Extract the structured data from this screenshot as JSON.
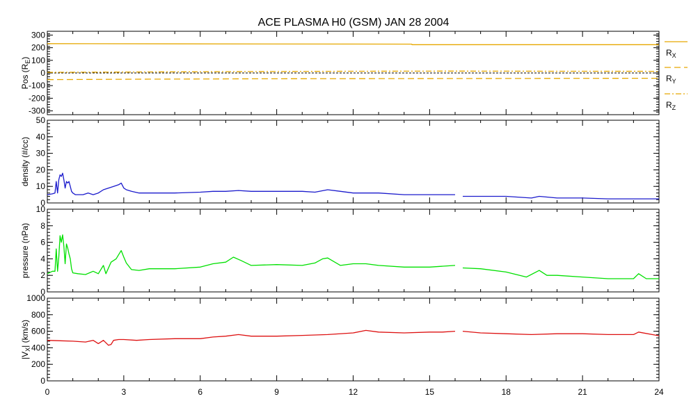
{
  "chart_data": {
    "type": "line",
    "title": "ACE PLASMA H0 (GSM)   JAN 28 2004",
    "x_axis": {
      "range": [
        0,
        24
      ],
      "ticks": [
        0,
        3,
        6,
        9,
        12,
        15,
        18,
        21,
        24
      ]
    },
    "panels": [
      {
        "id": "pos",
        "ylabel_main": "Pos (R",
        "ylabel_sub": "E",
        "ylabel_end": ")",
        "ylim": [
          -330,
          330
        ],
        "yticks": [
          -300,
          -200,
          -100,
          0,
          100,
          200,
          300
        ],
        "zero_line": true,
        "series": [
          {
            "name_main": "R",
            "name_sub": "X",
            "color": "#e6a800",
            "dash": "solid",
            "x": [
              0,
              14.3,
              14.31,
              24
            ],
            "y": [
              232,
              228,
              224,
              224
            ]
          },
          {
            "name_main": "R",
            "name_sub": "Y",
            "color": "#e6a800",
            "dash": "dashed",
            "x": [
              0,
              4,
              8,
              12,
              16,
              20,
              24
            ],
            "y": [
              -53,
              -49,
              -46,
              -45,
              -44,
              -43,
              -42
            ]
          },
          {
            "name_main": "R",
            "name_sub": "Z",
            "color": "#e6a800",
            "dash": "dashdot",
            "x": [
              0,
              4,
              8,
              12,
              16,
              20,
              24
            ],
            "y": [
              5,
              8,
              11,
              14,
              15,
              14,
              13
            ]
          }
        ]
      },
      {
        "id": "density",
        "ylabel": "density (#/cc)",
        "ylim": [
          0,
          50
        ],
        "yticks": [
          0,
          10,
          20,
          30,
          40,
          50
        ],
        "series": [
          {
            "name": "",
            "color": "#1a1acc",
            "x": [
              0,
              0.2,
              0.3,
              0.35,
              0.4,
              0.45,
              0.5,
              0.55,
              0.6,
              0.65,
              0.7,
              0.75,
              0.8,
              0.85,
              0.9,
              0.95,
              1.0,
              1.1,
              1.2,
              1.4,
              1.6,
              1.8,
              2.0,
              2.2,
              2.4,
              2.6,
              2.8,
              2.9,
              3.0,
              3.1,
              3.3,
              3.6,
              4,
              5,
              6,
              6.5,
              7,
              7.5,
              8,
              9,
              10,
              10.5,
              11,
              11.5,
              12,
              13,
              14,
              15,
              16,
              16.2,
              16.3,
              17,
              18,
              19,
              19.3,
              20,
              21,
              22,
              23,
              24
            ],
            "y": [
              5,
              5.5,
              6,
              13,
              6,
              14,
              17,
              16,
              18,
              14,
              9,
              13,
              12,
              13,
              10,
              7,
              6,
              5,
              5,
              5,
              6,
              5,
              6,
              8,
              9,
              10,
              11,
              12,
              9,
              8,
              7,
              6,
              6,
              6,
              6.5,
              7,
              7,
              7.5,
              7,
              7,
              7,
              6.5,
              8,
              7,
              6,
              6,
              5,
              5,
              5,
              null,
              4,
              4,
              4,
              3,
              4,
              3,
              3,
              2.5,
              2.5,
              2.5
            ]
          }
        ]
      },
      {
        "id": "pressure",
        "ylabel": "pressure (nPa)",
        "ylim": [
          0,
          10
        ],
        "yticks": [
          0,
          2,
          4,
          6,
          8,
          10
        ],
        "series": [
          {
            "name": "",
            "color": "#00e000",
            "x": [
              0,
              0.2,
              0.3,
              0.35,
              0.4,
              0.45,
              0.5,
              0.55,
              0.6,
              0.65,
              0.7,
              0.75,
              0.8,
              0.85,
              0.9,
              0.95,
              1.0,
              1.2,
              1.5,
              1.8,
              2.0,
              2.2,
              2.3,
              2.5,
              2.7,
              2.8,
              2.9,
              3.0,
              3.1,
              3.3,
              3.6,
              4,
              5,
              6,
              6.5,
              7,
              7.3,
              7.6,
              8,
              9,
              10,
              10.5,
              10.8,
              11,
              11.5,
              12,
              12.5,
              13,
              14,
              15,
              16,
              16.2,
              16.3,
              17,
              18,
              18.8,
              19.3,
              19.6,
              20,
              21,
              22,
              23,
              23.2,
              23.5,
              24
            ],
            "y": [
              2.2,
              2.5,
              2.5,
              5.2,
              2.5,
              4.2,
              6.8,
              6.0,
              6.9,
              5.5,
              3.4,
              5.8,
              5.3,
              4.6,
              4.0,
              2.8,
              2.3,
              2.2,
              2.1,
              2.5,
              2.2,
              3.2,
              2.2,
              3.6,
              4.0,
              4.5,
              5.0,
              4.2,
              3.5,
              2.7,
              2.6,
              2.8,
              2.8,
              3.0,
              3.4,
              3.6,
              4.2,
              3.8,
              3.2,
              3.3,
              3.2,
              3.5,
              4.0,
              4.1,
              3.2,
              3.4,
              3.4,
              3.2,
              3.0,
              3.0,
              3.2,
              null,
              2.9,
              2.8,
              2.4,
              1.8,
              2.6,
              2.0,
              2.0,
              1.8,
              1.6,
              1.6,
              2.2,
              1.6,
              1.6
            ]
          }
        ]
      },
      {
        "id": "vx",
        "ylabel_main": "|V",
        "ylabel_sub": "X",
        "ylabel_end": "| (km/s)",
        "ylim": [
          0,
          1000
        ],
        "yticks": [
          0,
          200,
          400,
          600,
          800,
          1000
        ],
        "series": [
          {
            "name": "",
            "color": "#dd1010",
            "x": [
              0,
              0.5,
              1.0,
              1.5,
              1.8,
              2.0,
              2.2,
              2.4,
              2.5,
              2.6,
              2.8,
              3.0,
              3.5,
              4,
              5,
              6,
              6.5,
              7,
              7.5,
              8,
              9,
              10,
              11,
              12,
              12.5,
              13,
              14,
              15,
              15.5,
              16,
              16.2,
              16.3,
              17,
              18,
              19,
              20,
              21,
              22,
              23,
              23.2,
              24
            ],
            "y": [
              490,
              485,
              480,
              470,
              490,
              450,
              490,
              430,
              440,
              490,
              500,
              500,
              490,
              500,
              510,
              510,
              530,
              540,
              560,
              540,
              540,
              550,
              560,
              580,
              610,
              590,
              580,
              590,
              590,
              600,
              null,
              600,
              580,
              570,
              560,
              570,
              570,
              560,
              560,
              590,
              545
            ]
          }
        ]
      }
    ]
  }
}
